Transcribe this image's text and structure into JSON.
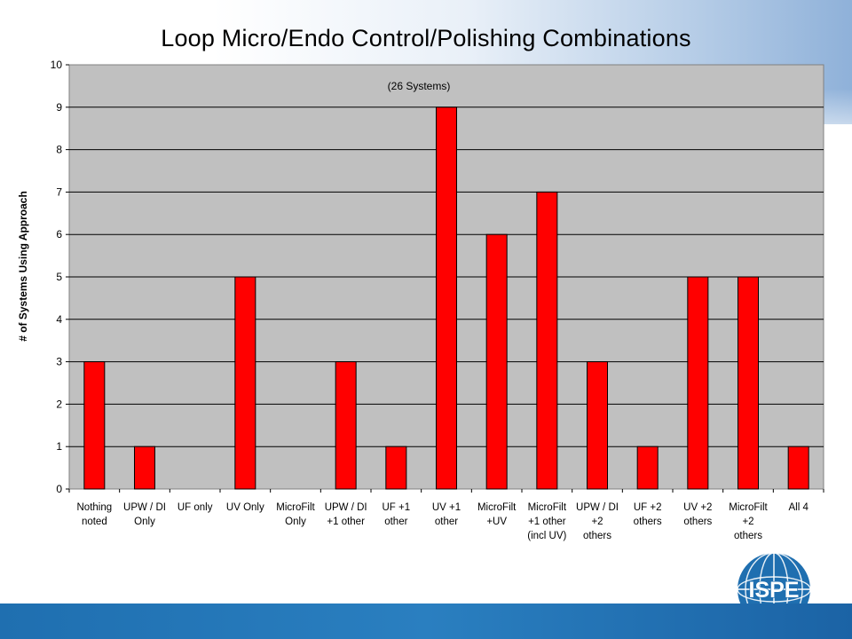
{
  "chart_data": {
    "type": "bar",
    "title": "Loop Micro/Endo Control/Polishing Combinations",
    "annotation": "(26 Systems)",
    "xlabel": "",
    "ylabel": "# of Systems Using Approach",
    "ylim": [
      0,
      10
    ],
    "yticks": [
      "0",
      "1",
      "2",
      "3",
      "4",
      "5",
      "6",
      "7",
      "8",
      "9",
      "10"
    ],
    "grid": true,
    "legend": "none",
    "bar_color": "#ff0000",
    "plot_bg": "#c0c0c0",
    "categories": [
      [
        "Nothing",
        "noted"
      ],
      [
        "UPW / DI",
        "Only"
      ],
      [
        "UF only"
      ],
      [
        "UV Only"
      ],
      [
        "MicroFilt",
        "Only"
      ],
      [
        "UPW / DI",
        "+1 other"
      ],
      [
        "UF +1",
        "other"
      ],
      [
        "UV +1",
        "other"
      ],
      [
        "MicroFilt",
        "+UV"
      ],
      [
        "MicroFilt",
        "+1 other",
        "(incl UV)"
      ],
      [
        "UPW / DI",
        "+2",
        "others"
      ],
      [
        "UF +2",
        "others"
      ],
      [
        "UV +2",
        "others"
      ],
      [
        "MicroFilt",
        "+2",
        "others"
      ],
      [
        "All 4"
      ]
    ],
    "values": [
      3,
      1,
      0,
      5,
      0,
      3,
      1,
      9,
      6,
      7,
      3,
      1,
      5,
      5,
      1
    ]
  },
  "logo": {
    "text": "ISPE",
    "color": "#1f6fb0"
  }
}
